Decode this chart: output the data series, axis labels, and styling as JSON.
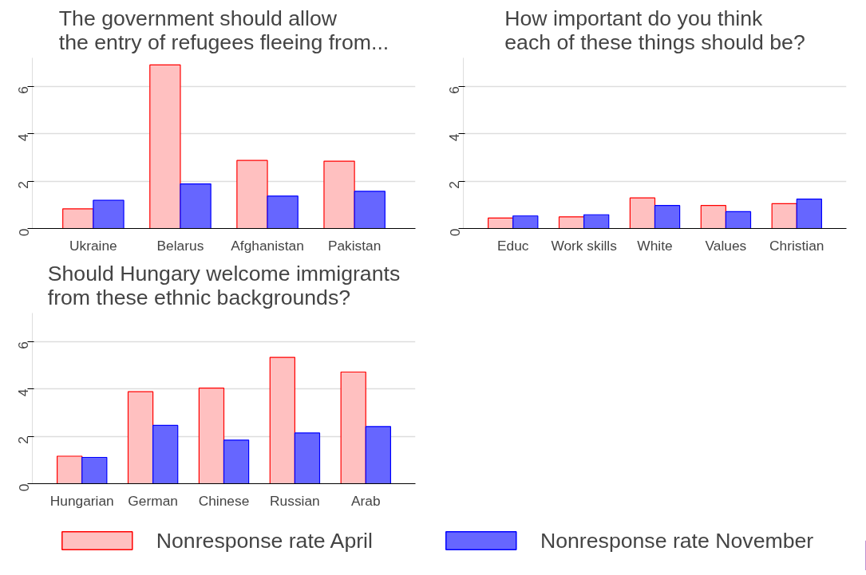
{
  "chart_data": [
    {
      "type": "bar",
      "title": "The government should allow\nthe entry of refugees fleeing from...",
      "categories": [
        "Ukraine",
        "Belarus",
        "Afghanistan",
        "Pakistan"
      ],
      "series": [
        {
          "name": "Nonresponse rate April",
          "color": "#ffc0c0",
          "values": [
            0.83,
            6.9,
            2.87,
            2.84
          ]
        },
        {
          "name": "Nonresponse rate November",
          "color": "#6666ff",
          "values": [
            1.19,
            1.88,
            1.37,
            1.57
          ]
        }
      ],
      "ylim": [
        0,
        7.2
      ],
      "yticks": [
        0,
        2,
        4,
        6
      ],
      "grid": "y",
      "legend": "bottom"
    },
    {
      "type": "bar",
      "title": "How important do you think\neach of these things should be?",
      "categories": [
        "Educ",
        "Work skills",
        "White",
        "Values",
        "Christian"
      ],
      "series": [
        {
          "color": "#ffc0c0",
          "values": [
            0.44,
            0.49,
            1.29,
            0.97,
            1.05
          ]
        },
        {
          "color": "#6666ff",
          "values": [
            0.53,
            0.58,
            0.97,
            0.71,
            1.24
          ]
        }
      ],
      "ylim": [
        0,
        7.2
      ],
      "yticks": [
        0,
        2,
        4,
        6
      ],
      "grid": "y"
    },
    {
      "type": "bar",
      "title": "Should Hungary welcome immigrants\nfrom these ethnic backgrounds?",
      "categories": [
        "Hungarian",
        "German",
        "Chinese",
        "Russian",
        "Arab"
      ],
      "series": [
        {
          "color": "#ffc0c0",
          "values": [
            1.16,
            3.88,
            4.03,
            5.33,
            4.71
          ]
        },
        {
          "color": "#6666ff",
          "values": [
            1.11,
            2.46,
            1.84,
            2.14,
            2.41
          ]
        }
      ],
      "ylim": [
        0,
        7.2
      ],
      "yticks": [
        0,
        2,
        4,
        6
      ],
      "grid": "y"
    }
  ]
}
